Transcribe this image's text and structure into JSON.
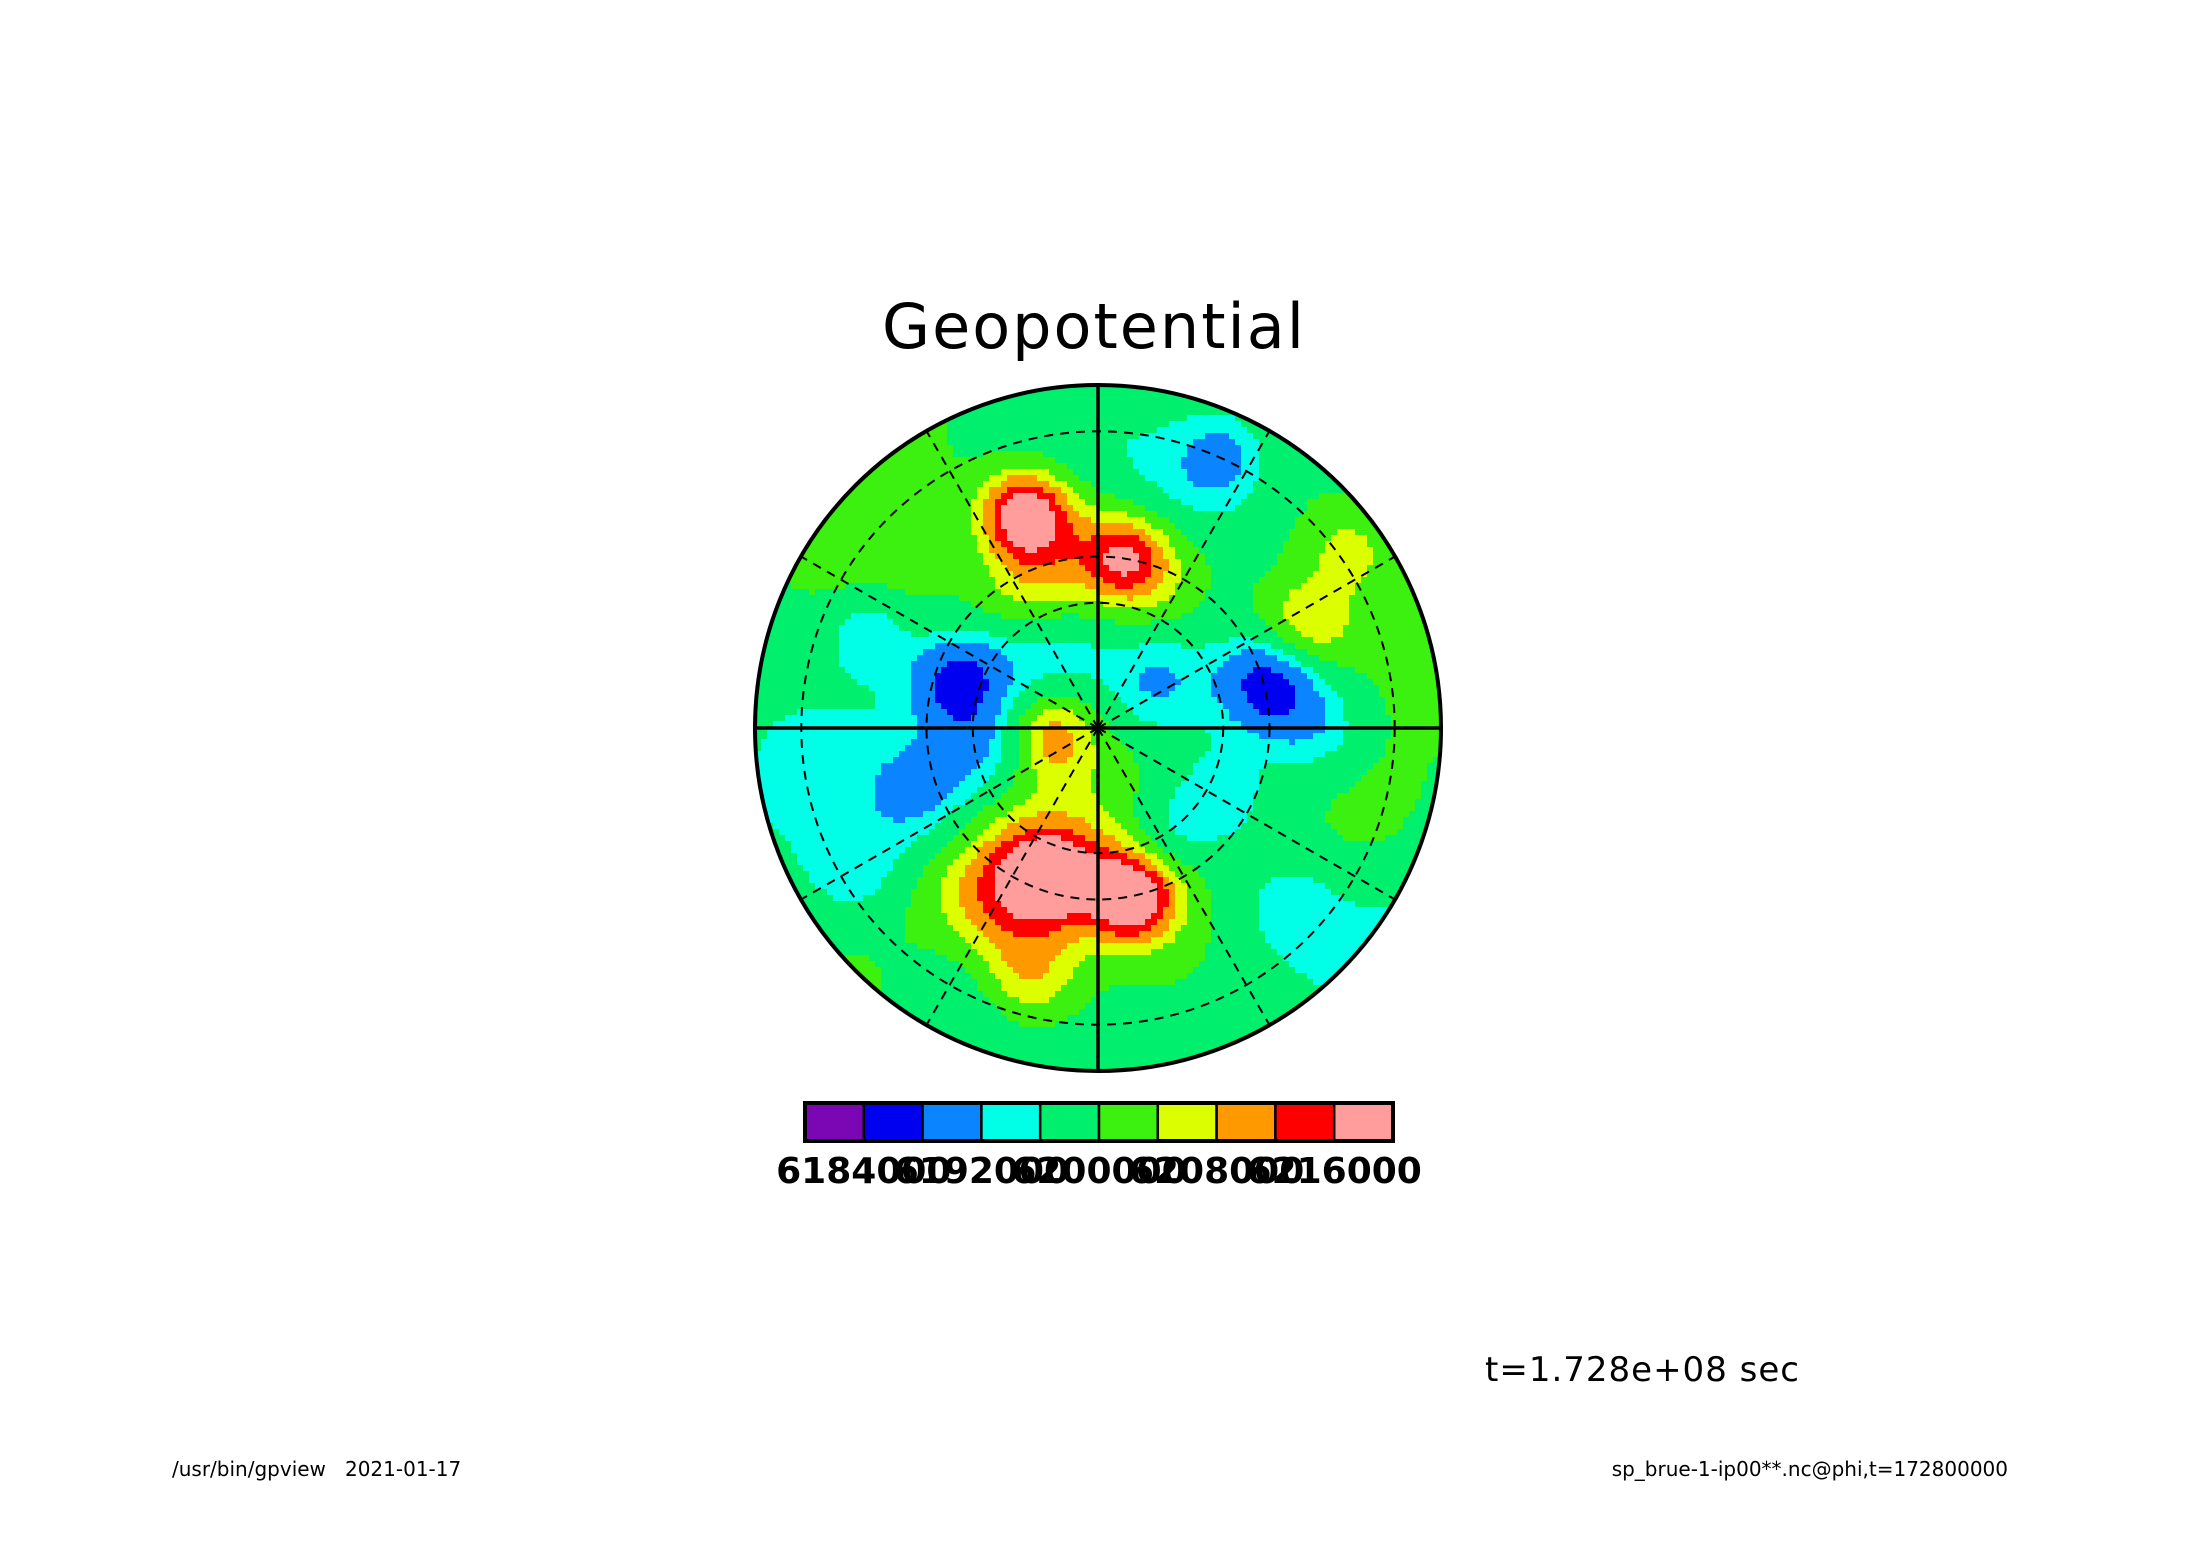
{
  "app": {
    "program": "/usr/bin/gpview",
    "date": "2021-01-17",
    "source": "sp_brue-1-ip00**.nc@phi,t=172800000"
  },
  "chart_data": {
    "type": "heatmap",
    "projection": "polar stereographic",
    "title": "Geopotential",
    "time_label": "t=1.728e+08 sec",
    "grid": true,
    "colorbar": {
      "position": "bottom",
      "colors": [
        "#7b06b3",
        "#0000f0",
        "#0a84ff",
        "#00ffe6",
        "#00f06e",
        "#3cf00f",
        "#dcff00",
        "#ff9900",
        "#ff0000",
        "#ff9c9c"
      ],
      "tick_labels": [
        "6184000",
        "6192000",
        "6200000",
        "6208000",
        "6216000"
      ],
      "tick_values": [
        6184000,
        6192000,
        6200000,
        6208000,
        6216000
      ],
      "bin_width": 4000,
      "range": [
        6180000,
        6220000
      ]
    }
  }
}
